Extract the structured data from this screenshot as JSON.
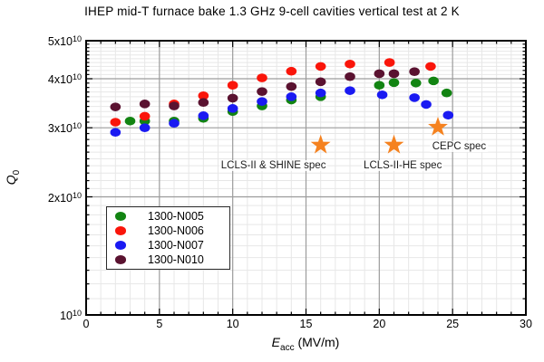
{
  "chart_data": {
    "type": "scatter",
    "title": "IHEP mid-T furnace bake 1.3 GHz 9-cell cavities vertical test at 2 K",
    "xlabel": {
      "italic": "E",
      "sub": "acc",
      "rest": " (MV/m)"
    },
    "ylabel": {
      "italic": "Q",
      "sub": "0"
    },
    "x_axis": {
      "min": 0,
      "max": 30,
      "major_ticks": [
        0,
        5,
        10,
        15,
        20,
        25,
        30
      ],
      "minor_step": 1,
      "grid": true
    },
    "y_axis": {
      "scale": "log",
      "unit": "1e10",
      "min": 1,
      "max": 5,
      "minor_step": 0.1,
      "grid": true,
      "major_ticks": [
        {
          "value": 1,
          "mantissa": "",
          "base": "10",
          "exp": "10"
        },
        {
          "value": 2,
          "mantissa": "2x",
          "base": "10",
          "exp": "10"
        },
        {
          "value": 3,
          "mantissa": "3x",
          "base": "10",
          "exp": "10"
        },
        {
          "value": 4,
          "mantissa": "4x",
          "base": "10",
          "exp": "10"
        },
        {
          "value": 5,
          "mantissa": "5x",
          "base": "10",
          "exp": "10"
        }
      ]
    },
    "series": [
      {
        "name": "1300-N005",
        "color": "#128412",
        "points": [
          [
            3,
            3.12
          ],
          [
            4,
            3.12
          ],
          [
            6,
            3.12
          ],
          [
            8,
            3.17
          ],
          [
            10,
            3.3
          ],
          [
            12,
            3.41
          ],
          [
            14,
            3.53
          ],
          [
            16,
            3.6
          ],
          [
            20,
            3.85
          ],
          [
            21,
            3.91
          ],
          [
            22.5,
            3.9
          ],
          [
            23.7,
            3.95
          ],
          [
            24.6,
            3.68
          ]
        ]
      },
      {
        "name": "1300-N006",
        "color": "#fa150a",
        "points": [
          [
            2,
            3.1
          ],
          [
            4,
            3.21
          ],
          [
            6,
            3.45
          ],
          [
            8,
            3.62
          ],
          [
            10,
            3.85
          ],
          [
            12,
            4.02
          ],
          [
            14,
            4.18
          ],
          [
            16,
            4.3
          ],
          [
            18,
            4.36
          ],
          [
            20.7,
            4.4
          ],
          [
            23.5,
            4.3
          ]
        ]
      },
      {
        "name": "1300-N007",
        "color": "#1a1af2",
        "points": [
          [
            2,
            2.92
          ],
          [
            4,
            3.0
          ],
          [
            6,
            3.08
          ],
          [
            8,
            3.22
          ],
          [
            10,
            3.36
          ],
          [
            12,
            3.5
          ],
          [
            14,
            3.6
          ],
          [
            16,
            3.68
          ],
          [
            18,
            3.73
          ],
          [
            20.2,
            3.64
          ],
          [
            22.4,
            3.58
          ],
          [
            23.2,
            3.44
          ],
          [
            24.7,
            3.23
          ]
        ]
      },
      {
        "name": "1300-N010",
        "color": "#5a1230",
        "points": [
          [
            2,
            3.39
          ],
          [
            4,
            3.45
          ],
          [
            6,
            3.41
          ],
          [
            8,
            3.48
          ],
          [
            10,
            3.57
          ],
          [
            12,
            3.71
          ],
          [
            14,
            3.82
          ],
          [
            16,
            3.93
          ],
          [
            18,
            4.05
          ],
          [
            20,
            4.12
          ],
          [
            21,
            4.12
          ],
          [
            22.4,
            4.17
          ]
        ]
      }
    ],
    "draw_order": [
      0,
      2,
      1,
      3
    ],
    "annotations": [
      {
        "label": "LCLS-II & SHINE spec",
        "marker": "star",
        "color": "#f5821f",
        "star": {
          "x": 16,
          "y": 2.71
        },
        "label_pos": {
          "x": 12.78,
          "y": 2.4
        }
      },
      {
        "label": "LCLS-II-HE spec",
        "marker": "star",
        "color": "#f5821f",
        "star": {
          "x": 21,
          "y": 2.71
        },
        "label_pos": {
          "x": 21.6,
          "y": 2.4
        }
      },
      {
        "label": "CEPC spec",
        "marker": "star",
        "color": "#f5821f",
        "star": {
          "x": 24,
          "y": 3.01
        },
        "label_pos": {
          "x": 25.45,
          "y": 2.69
        }
      }
    ],
    "legend": {
      "position": "lower-left",
      "entries": [
        "1300-N005",
        "1300-N006",
        "1300-N007",
        "1300-N010"
      ]
    },
    "grid_colors": {
      "minor": "#e7e7e7",
      "major": "#9c9c9c",
      "frame": "#000000"
    }
  }
}
